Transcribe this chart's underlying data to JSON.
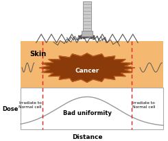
{
  "bg_color": "#ffffff",
  "skin_color": "#f5b870",
  "cancer_fill": "#8b3a0a",
  "cancer_lighter": "#c06020",
  "skin_label": "Skin",
  "cancer_label": "Cancer",
  "dose_label": "Dose",
  "distance_label": "Distance",
  "bad_uniformity_label": "Bad uniformity",
  "irradiate_label": "Irradiate to\nNormal cell",
  "curve_color": "#999999",
  "dashed_color": "#dd2222",
  "border_color": "#aaaaaa",
  "nozzle_body_color": "#cccccc",
  "nozzle_stripe_color": "#999999",
  "zigzag_color": "#555555",
  "skin_wave_color": "#555555"
}
